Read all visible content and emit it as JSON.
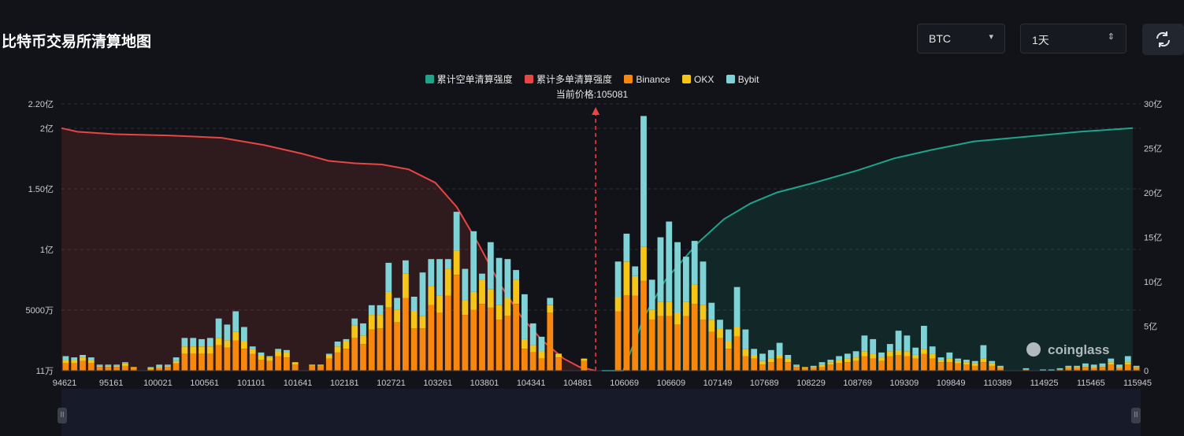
{
  "page": {
    "title": "比特币交易所清算地图"
  },
  "controls": {
    "symbol": "BTC",
    "period": "1天",
    "symbol_caret": "▾",
    "period_caret": "⇕"
  },
  "icons": {
    "refresh": "refresh-icon",
    "scroll_handle": "drag-handle-icon"
  },
  "colors": {
    "cum_short": "#1fa48c",
    "cum_long": "#e84545",
    "binance": "#f7870d",
    "okx": "#f5c518",
    "bybit": "#7fd3d6"
  },
  "chart_data": {
    "type": "bar",
    "legend": [
      "累计空单清算强度",
      "累计多单清算强度",
      "Binance",
      "OKX",
      "Bybit"
    ],
    "current_price_label": "当前价格:105081",
    "current_price": 105081,
    "x_tick_labels": [
      "94621",
      "95161",
      "100021",
      "100561",
      "101101",
      "101641",
      "102181",
      "102721",
      "103261",
      "103801",
      "104341",
      "104881",
      "106069",
      "106609",
      "107149",
      "107689",
      "108229",
      "108769",
      "109309",
      "109849",
      "110389",
      "114925",
      "115465",
      "115945"
    ],
    "y_left": {
      "ticks": [
        "11万",
        "5000万",
        "1亿",
        "1.50亿",
        "2亿",
        "2.20亿"
      ],
      "values_yi": [
        0.0011,
        0.5,
        1.0,
        1.5,
        2.0,
        2.2
      ],
      "min": 0.0011,
      "max": 2.2,
      "unit": "亿"
    },
    "y_right": {
      "ticks": [
        "0",
        "5亿",
        "10亿",
        "15亿",
        "20亿",
        "25亿",
        "30亿"
      ],
      "max": 30,
      "unit": "亿"
    },
    "grid": "horizontal dashed",
    "watermark": "coinglass",
    "bars_unit": "亿",
    "bars": [
      [
        0.06,
        0.03,
        0.03
      ],
      [
        0.06,
        0.03,
        0.02
      ],
      [
        0.08,
        0.03,
        0.02
      ],
      [
        0.06,
        0.03,
        0.02
      ],
      [
        0.03,
        0.01,
        0.01
      ],
      [
        0.03,
        0.01,
        0.01
      ],
      [
        0.03,
        0.01,
        0.01
      ],
      [
        0.04,
        0.02,
        0.01
      ],
      [
        0.02,
        0.01,
        0.0
      ],
      [
        0.0,
        0.0,
        0.0
      ],
      [
        0.01,
        0.01,
        0.01
      ],
      [
        0.02,
        0.01,
        0.02
      ],
      [
        0.03,
        0.01,
        0.01
      ],
      [
        0.06,
        0.02,
        0.03
      ],
      [
        0.14,
        0.06,
        0.07
      ],
      [
        0.14,
        0.06,
        0.07
      ],
      [
        0.14,
        0.06,
        0.06
      ],
      [
        0.14,
        0.06,
        0.07
      ],
      [
        0.21,
        0.06,
        0.16
      ],
      [
        0.19,
        0.06,
        0.13
      ],
      [
        0.25,
        0.07,
        0.17
      ],
      [
        0.18,
        0.06,
        0.12
      ],
      [
        0.14,
        0.04,
        0.02
      ],
      [
        0.09,
        0.04,
        0.02
      ],
      [
        0.08,
        0.03,
        0.01
      ],
      [
        0.12,
        0.04,
        0.02
      ],
      [
        0.11,
        0.04,
        0.02
      ],
      [
        0.05,
        0.02,
        0.0
      ],
      [
        0.0,
        0.0,
        0.0
      ],
      [
        0.04,
        0.01,
        0.0
      ],
      [
        0.04,
        0.01,
        0.0
      ],
      [
        0.1,
        0.03,
        0.01
      ],
      [
        0.15,
        0.05,
        0.04
      ],
      [
        0.18,
        0.06,
        0.02
      ],
      [
        0.27,
        0.1,
        0.06
      ],
      [
        0.22,
        0.07,
        0.1
      ],
      [
        0.34,
        0.12,
        0.08
      ],
      [
        0.35,
        0.11,
        0.08
      ],
      [
        0.52,
        0.13,
        0.24
      ],
      [
        0.4,
        0.1,
        0.1
      ],
      [
        0.6,
        0.2,
        0.11
      ],
      [
        0.35,
        0.14,
        0.12
      ],
      [
        0.35,
        0.1,
        0.36
      ],
      [
        0.54,
        0.16,
        0.22
      ],
      [
        0.48,
        0.14,
        0.3
      ],
      [
        0.62,
        0.22,
        0.08
      ],
      [
        0.79,
        0.2,
        0.32
      ],
      [
        0.46,
        0.12,
        0.26
      ],
      [
        0.5,
        0.15,
        0.5
      ],
      [
        0.55,
        0.2,
        0.05
      ],
      [
        0.52,
        0.15,
        0.39
      ],
      [
        0.42,
        0.12,
        0.39
      ],
      [
        0.45,
        0.15,
        0.32
      ],
      [
        0.55,
        0.2,
        0.08
      ],
      [
        0.18,
        0.08,
        0.37
      ],
      [
        0.15,
        0.06,
        0.18
      ],
      [
        0.1,
        0.06,
        0.12
      ],
      [
        0.48,
        0.06,
        0.06
      ],
      [
        0.11,
        0.03,
        0.0
      ],
      [
        0.0,
        0.0,
        0.0
      ],
      [
        0.0,
        0.0,
        0.0
      ],
      [
        0.08,
        0.02,
        0.0
      ],
      [
        0.0,
        0.0,
        0.0
      ],
      [
        0.0,
        0.0,
        0.0
      ],
      [
        0.0,
        0.0,
        0.0
      ],
      [
        0.49,
        0.12,
        0.29
      ],
      [
        0.62,
        0.28,
        0.23
      ],
      [
        0.62,
        0.16,
        0.08
      ],
      [
        0.74,
        0.28,
        1.08
      ],
      [
        0.42,
        0.08,
        0.25
      ],
      [
        0.45,
        0.12,
        0.53
      ],
      [
        0.45,
        0.12,
        0.66
      ],
      [
        0.38,
        0.1,
        0.58
      ],
      [
        0.45,
        0.12,
        0.37
      ],
      [
        0.55,
        0.16,
        0.36
      ],
      [
        0.42,
        0.12,
        0.36
      ],
      [
        0.32,
        0.1,
        0.14
      ],
      [
        0.27,
        0.08,
        0.07
      ],
      [
        0.18,
        0.06,
        0.1
      ],
      [
        0.28,
        0.08,
        0.33
      ],
      [
        0.12,
        0.06,
        0.16
      ],
      [
        0.1,
        0.03,
        0.05
      ],
      [
        0.05,
        0.03,
        0.06
      ],
      [
        0.07,
        0.03,
        0.07
      ],
      [
        0.1,
        0.03,
        0.1
      ],
      [
        0.07,
        0.03,
        0.03
      ],
      [
        0.03,
        0.01,
        0.01
      ],
      [
        0.02,
        0.01,
        0.0
      ],
      [
        0.02,
        0.01,
        0.01
      ],
      [
        0.03,
        0.02,
        0.02
      ],
      [
        0.05,
        0.02,
        0.02
      ],
      [
        0.06,
        0.03,
        0.03
      ],
      [
        0.07,
        0.03,
        0.04
      ],
      [
        0.08,
        0.03,
        0.05
      ],
      [
        0.12,
        0.04,
        0.13
      ],
      [
        0.1,
        0.04,
        0.12
      ],
      [
        0.08,
        0.03,
        0.04
      ],
      [
        0.12,
        0.04,
        0.06
      ],
      [
        0.13,
        0.04,
        0.16
      ],
      [
        0.12,
        0.04,
        0.13
      ],
      [
        0.1,
        0.03,
        0.06
      ],
      [
        0.14,
        0.04,
        0.19
      ],
      [
        0.1,
        0.04,
        0.06
      ],
      [
        0.07,
        0.02,
        0.02
      ],
      [
        0.07,
        0.03,
        0.05
      ],
      [
        0.06,
        0.02,
        0.02
      ],
      [
        0.05,
        0.02,
        0.02
      ],
      [
        0.04,
        0.02,
        0.02
      ],
      [
        0.07,
        0.03,
        0.11
      ],
      [
        0.04,
        0.02,
        0.02
      ],
      [
        0.02,
        0.01,
        0.01
      ],
      [
        0.0,
        0.0,
        0.0
      ],
      [
        0.0,
        0.0,
        0.0
      ],
      [
        0.01,
        0.0,
        0.01
      ],
      [
        0.0,
        0.0,
        0.0
      ],
      [
        0.0,
        0.0,
        0.01
      ],
      [
        0.0,
        0.0,
        0.01
      ],
      [
        0.01,
        0.0,
        0.01
      ],
      [
        0.02,
        0.01,
        0.01
      ],
      [
        0.02,
        0.01,
        0.01
      ],
      [
        0.03,
        0.01,
        0.02
      ],
      [
        0.02,
        0.01,
        0.02
      ],
      [
        0.03,
        0.01,
        0.02
      ],
      [
        0.05,
        0.02,
        0.03
      ],
      [
        0.02,
        0.01,
        0.02
      ],
      [
        0.05,
        0.02,
        0.05
      ],
      [
        0.02,
        0.01,
        0.01
      ]
    ],
    "cum_long_yi": [
      [
        0,
        2.0
      ],
      [
        0.03,
        1.97
      ],
      [
        0.1,
        1.95
      ],
      [
        0.2,
        1.94
      ],
      [
        0.3,
        1.92
      ],
      [
        0.38,
        1.86
      ],
      [
        0.45,
        1.79
      ],
      [
        0.5,
        1.73
      ],
      [
        0.55,
        1.71
      ],
      [
        0.6,
        1.7
      ],
      [
        0.65,
        1.66
      ],
      [
        0.7,
        1.55
      ],
      [
        0.74,
        1.35
      ],
      [
        0.78,
        1.05
      ],
      [
        0.82,
        0.72
      ],
      [
        0.86,
        0.45
      ],
      [
        0.9,
        0.25
      ],
      [
        0.94,
        0.1
      ],
      [
        0.97,
        0.03
      ],
      [
        1.0,
        0.0
      ]
    ],
    "cum_short_yi": [
      [
        0,
        0.0
      ],
      [
        0.04,
        0.0
      ],
      [
        0.08,
        0.45
      ],
      [
        0.12,
        0.75
      ],
      [
        0.18,
        1.05
      ],
      [
        0.23,
        1.25
      ],
      [
        0.28,
        1.38
      ],
      [
        0.33,
        1.47
      ],
      [
        0.4,
        1.55
      ],
      [
        0.48,
        1.65
      ],
      [
        0.55,
        1.75
      ],
      [
        0.62,
        1.82
      ],
      [
        0.7,
        1.89
      ],
      [
        0.8,
        1.93
      ],
      [
        0.9,
        1.97
      ],
      [
        1.0,
        2.0
      ]
    ]
  }
}
